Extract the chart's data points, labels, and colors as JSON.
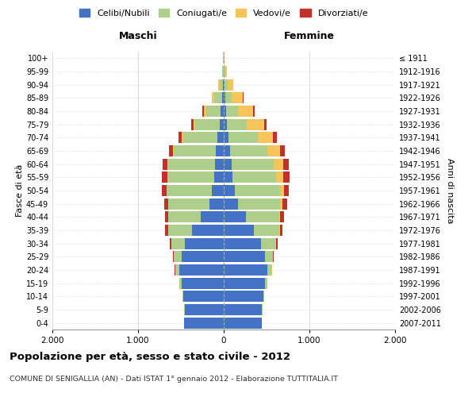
{
  "age_groups": [
    "0-4",
    "5-9",
    "10-14",
    "15-19",
    "20-24",
    "25-29",
    "30-34",
    "35-39",
    "40-44",
    "45-49",
    "50-54",
    "55-59",
    "60-64",
    "65-69",
    "70-74",
    "75-79",
    "80-84",
    "85-89",
    "90-94",
    "95-99",
    "100+"
  ],
  "birth_years": [
    "2007-2011",
    "2002-2006",
    "1997-2001",
    "1992-1996",
    "1987-1991",
    "1982-1986",
    "1977-1981",
    "1972-1976",
    "1967-1971",
    "1962-1966",
    "1957-1961",
    "1952-1956",
    "1947-1951",
    "1942-1946",
    "1937-1941",
    "1932-1936",
    "1927-1931",
    "1922-1926",
    "1917-1921",
    "1912-1916",
    "≤ 1911"
  ],
  "males": {
    "celibi": [
      460,
      455,
      475,
      495,
      515,
      490,
      450,
      370,
      265,
      170,
      135,
      115,
      105,
      90,
      75,
      50,
      35,
      22,
      8,
      4,
      2
    ],
    "coniugati": [
      3,
      5,
      10,
      20,
      50,
      90,
      160,
      280,
      380,
      475,
      530,
      540,
      540,
      490,
      400,
      280,
      170,
      90,
      40,
      10,
      2
    ],
    "vedovi": [
      0,
      0,
      0,
      1,
      1,
      2,
      2,
      2,
      3,
      3,
      4,
      5,
      8,
      10,
      15,
      20,
      30,
      25,
      15,
      5,
      1
    ],
    "divorziati": [
      0,
      0,
      0,
      3,
      5,
      10,
      20,
      30,
      40,
      45,
      50,
      65,
      60,
      50,
      40,
      30,
      15,
      5,
      2,
      0,
      0
    ]
  },
  "females": {
    "nubili": [
      445,
      445,
      465,
      485,
      505,
      480,
      435,
      355,
      255,
      165,
      125,
      105,
      95,
      75,
      55,
      40,
      25,
      15,
      8,
      4,
      2
    ],
    "coniugate": [
      3,
      5,
      10,
      20,
      55,
      90,
      170,
      290,
      390,
      490,
      530,
      510,
      490,
      430,
      340,
      230,
      140,
      80,
      35,
      10,
      2
    ],
    "vedove": [
      0,
      0,
      0,
      1,
      2,
      3,
      5,
      8,
      15,
      30,
      50,
      80,
      110,
      150,
      180,
      200,
      180,
      130,
      70,
      20,
      5
    ],
    "divorziate": [
      0,
      0,
      0,
      3,
      5,
      12,
      20,
      35,
      45,
      55,
      55,
      70,
      65,
      55,
      45,
      30,
      15,
      5,
      2,
      0,
      0
    ]
  },
  "colors": {
    "celibi_nubili": "#4472C4",
    "coniugati": "#AECF8B",
    "vedovi": "#F5C55A",
    "divorziati": "#C0312B"
  },
  "xlim": 2000,
  "title": "Popolazione per età, sesso e stato civile - 2012",
  "subtitle": "COMUNE DI SENIGALLIA (AN) - Dati ISTAT 1° gennaio 2012 - Elaborazione TUTTITALIA.IT",
  "ylabel_left": "Fasce di età",
  "ylabel_right": "Anni di nascita",
  "xlabel_left": "Maschi",
  "xlabel_right": "Femmine",
  "legend_labels": [
    "Celibi/Nubili",
    "Coniugati/e",
    "Vedovi/e",
    "Divorziati/e"
  ],
  "xtick_labels": [
    "2.000",
    "1.000",
    "0",
    "1.000",
    "2.000"
  ],
  "xtick_values": [
    -2000,
    -1000,
    0,
    1000,
    2000
  ],
  "background_color": "#ffffff",
  "grid_color": "#cccccc"
}
